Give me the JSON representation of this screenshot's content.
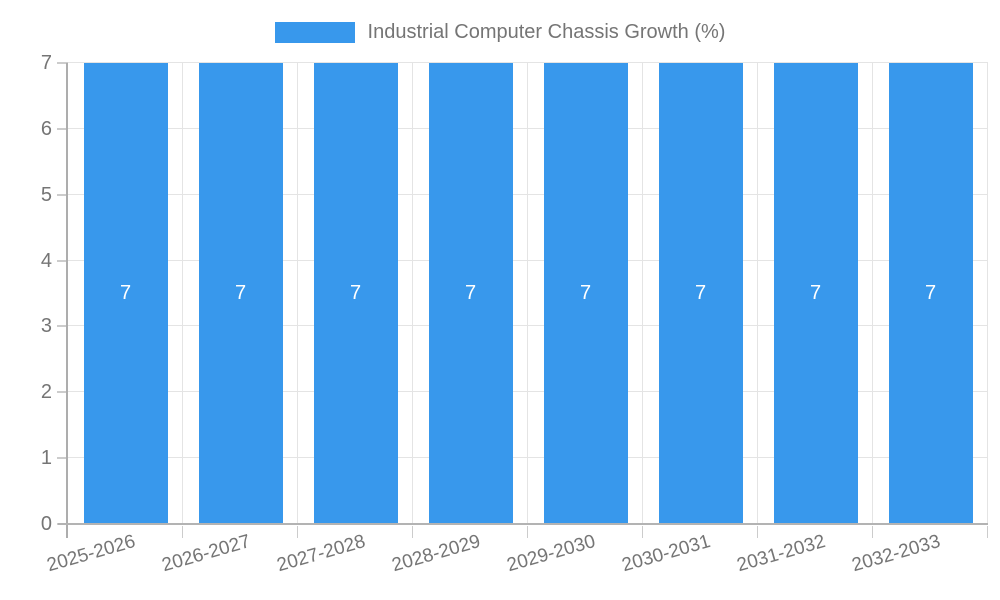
{
  "legend": {
    "label": "Industrial Computer Chassis Growth (%)"
  },
  "chart_data": {
    "type": "bar",
    "title": "Industrial Computer Chassis Growth (%)",
    "categories": [
      "2025-2026",
      "2026-2027",
      "2027-2028",
      "2028-2029",
      "2029-2030",
      "2030-2031",
      "2031-2032",
      "2032-2033"
    ],
    "values": [
      7,
      7,
      7,
      7,
      7,
      7,
      7,
      7
    ],
    "value_labels": [
      "7",
      "7",
      "7",
      "7",
      "7",
      "7",
      "7",
      "7"
    ],
    "xlabel": "",
    "ylabel": "",
    "ylim": [
      0,
      7
    ],
    "yticks": [
      "0",
      "1",
      "2",
      "3",
      "4",
      "5",
      "6",
      "7"
    ],
    "grid": true,
    "legend_position": "top",
    "colors": {
      "bar": "#3898ec",
      "grid": "#e4e4e4",
      "axis": "#b0b0b0",
      "tick": "#cccccc",
      "label_text": "#757575",
      "value_label": "#ffffff"
    }
  }
}
